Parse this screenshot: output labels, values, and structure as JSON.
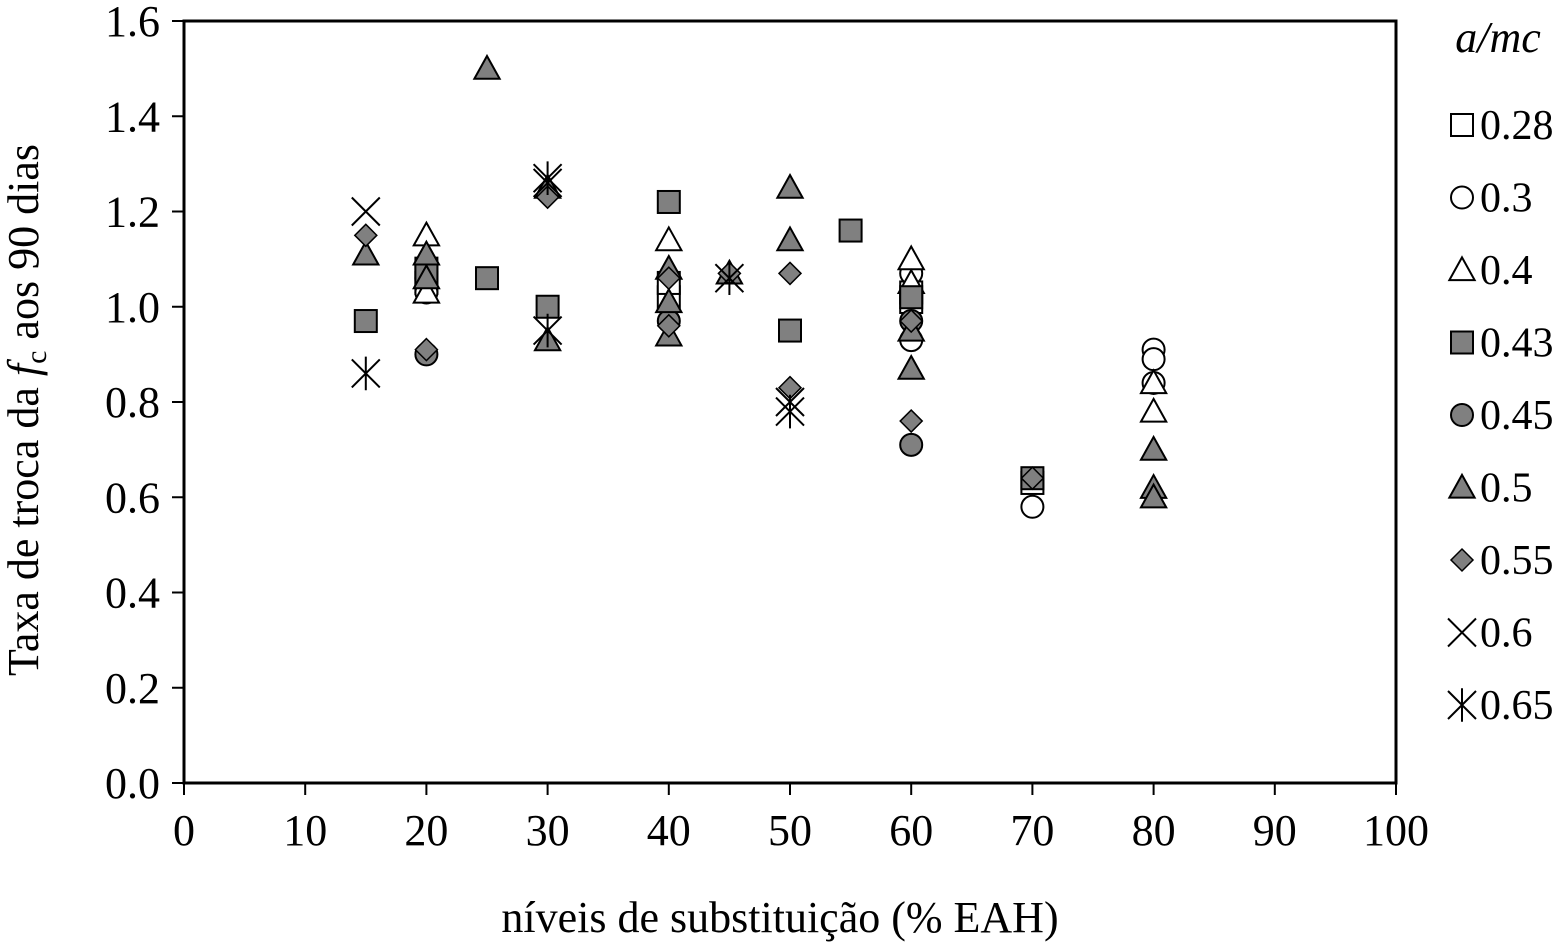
{
  "chart_data": {
    "type": "scatter",
    "title": "",
    "xlabel": "níveis de substituição (% EAH)",
    "ylabel_parts": [
      "Taxa de troca da ",
      "f",
      "c",
      " aos 90 dias"
    ],
    "xlim": [
      0,
      100
    ],
    "ylim": [
      0.0,
      1.6
    ],
    "x_ticks": [
      "0",
      "10",
      "20",
      "30",
      "40",
      "50",
      "60",
      "70",
      "80",
      "90",
      "100"
    ],
    "y_ticks": [
      "0.0",
      "0.2",
      "0.4",
      "0.6",
      "0.8",
      "1.0",
      "1.2",
      "1.4",
      "1.6"
    ],
    "grid": false,
    "legend_title": "a/mc",
    "legend_position": "right",
    "series": [
      {
        "name": "0.28",
        "marker": "square-open",
        "points": [
          [
            20,
            1.05
          ],
          [
            20,
            1.08
          ],
          [
            40,
            1.02
          ],
          [
            40,
            1.05
          ],
          [
            60,
            1.03
          ],
          [
            60,
            1.01
          ],
          [
            70,
            0.63
          ]
        ]
      },
      {
        "name": "0.3",
        "marker": "circle-open",
        "points": [
          [
            20,
            1.03
          ],
          [
            20,
            1.06
          ],
          [
            60,
            1.07
          ],
          [
            60,
            0.93
          ],
          [
            70,
            0.58
          ],
          [
            80,
            0.91
          ],
          [
            80,
            0.89
          ],
          [
            80,
            0.84
          ]
        ]
      },
      {
        "name": "0.4",
        "marker": "triangle-open",
        "points": [
          [
            20,
            1.15
          ],
          [
            20,
            1.03
          ],
          [
            40,
            1.14
          ],
          [
            60,
            1.1
          ],
          [
            60,
            1.05
          ],
          [
            80,
            0.84
          ],
          [
            80,
            0.78
          ]
        ]
      },
      {
        "name": "0.43",
        "marker": "square-filled",
        "points": [
          [
            15,
            0.97
          ],
          [
            20,
            1.07
          ],
          [
            25,
            1.06
          ],
          [
            30,
            1.0
          ],
          [
            40,
            1.22
          ],
          [
            50,
            0.95
          ],
          [
            55,
            1.16
          ],
          [
            60,
            1.02
          ],
          [
            70,
            0.64
          ]
        ]
      },
      {
        "name": "0.45",
        "marker": "circle-filled",
        "points": [
          [
            20,
            0.9
          ],
          [
            40,
            0.97
          ],
          [
            60,
            0.97
          ],
          [
            60,
            0.71
          ]
        ]
      },
      {
        "name": "0.5",
        "marker": "triangle-filled",
        "points": [
          [
            15,
            1.11
          ],
          [
            20,
            1.11
          ],
          [
            20,
            1.06
          ],
          [
            25,
            1.5
          ],
          [
            30,
            1.25
          ],
          [
            30,
            0.93
          ],
          [
            40,
            1.08
          ],
          [
            40,
            1.01
          ],
          [
            40,
            0.94
          ],
          [
            45,
            1.07
          ],
          [
            50,
            1.25
          ],
          [
            50,
            1.14
          ],
          [
            60,
            0.95
          ],
          [
            60,
            0.87
          ],
          [
            80,
            0.7
          ],
          [
            80,
            0.62
          ],
          [
            80,
            0.6
          ]
        ]
      },
      {
        "name": "0.55",
        "marker": "diamond-filled",
        "points": [
          [
            15,
            1.15
          ],
          [
            20,
            0.91
          ],
          [
            30,
            1.23
          ],
          [
            40,
            1.06
          ],
          [
            40,
            0.96
          ],
          [
            45,
            1.07
          ],
          [
            50,
            1.07
          ],
          [
            50,
            0.83
          ],
          [
            60,
            0.97
          ],
          [
            60,
            0.76
          ],
          [
            70,
            0.64
          ]
        ]
      },
      {
        "name": "0.6",
        "marker": "x",
        "points": [
          [
            15,
            1.2
          ],
          [
            30,
            1.26
          ],
          [
            50,
            0.8
          ]
        ]
      },
      {
        "name": "0.65",
        "marker": "asterisk",
        "points": [
          [
            15,
            0.86
          ],
          [
            30,
            0.95
          ],
          [
            30,
            1.27
          ],
          [
            45,
            1.06
          ],
          [
            50,
            0.78
          ]
        ]
      }
    ]
  },
  "colors": {
    "filled_marker": "#808080",
    "marker_stroke": "#000000",
    "ylabel_color": "#3b1f14"
  }
}
